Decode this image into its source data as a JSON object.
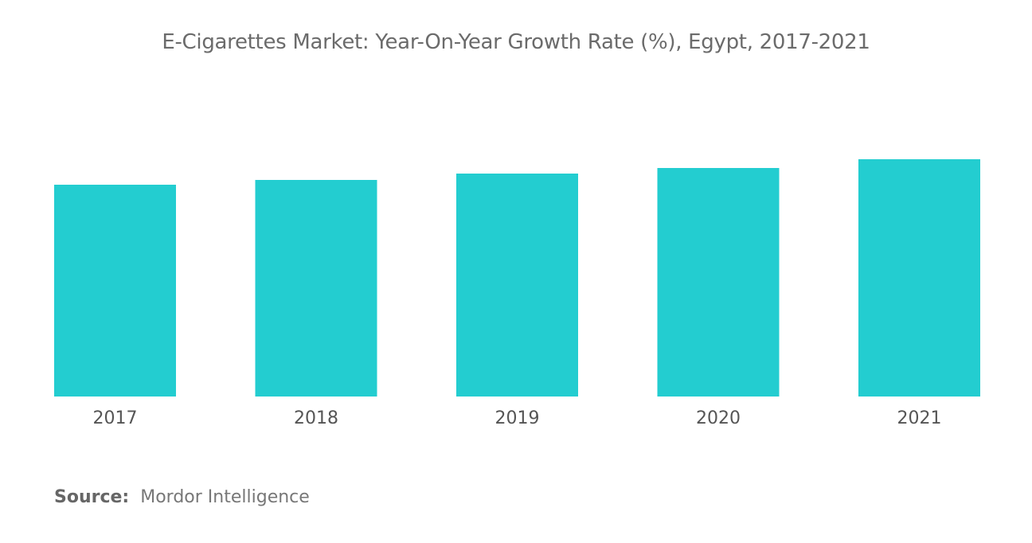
{
  "chart_data": {
    "type": "bar",
    "title": "E-Cigarettes Market: Year-On-Year Growth Rate (%), Egypt, 2017-2021",
    "categories": [
      "2017",
      "2018",
      "2019",
      "2020",
      "2021"
    ],
    "values": [
      26.6,
      27.2,
      28.0,
      28.7,
      29.8
    ],
    "xlabel": "",
    "ylabel": "",
    "ylim": [
      0,
      35
    ],
    "y_axis_shown": false,
    "grid": false,
    "bar_color": "#23cdd0"
  },
  "source": {
    "label": "Source:",
    "value": "Mordor Intelligence"
  }
}
